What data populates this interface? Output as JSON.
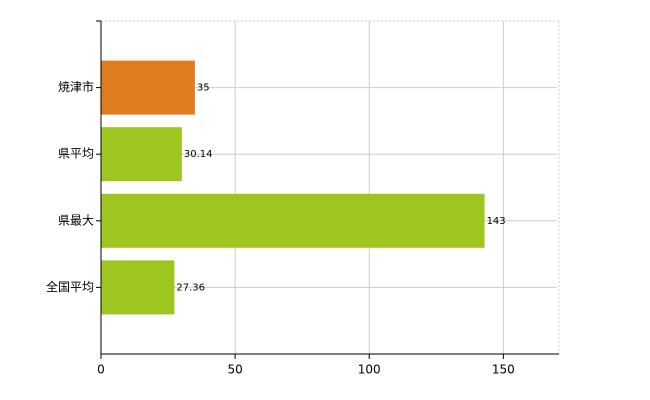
{
  "chart_data": {
    "type": "bar",
    "orientation": "horizontal",
    "categories": [
      "焼津市",
      "県平均",
      "県最大",
      "全国平均"
    ],
    "values": [
      35,
      30.14,
      143,
      27.36
    ],
    "colors": [
      "#e07b1f",
      "#9ec620",
      "#9ec620",
      "#9ec620"
    ],
    "xlim": [
      0,
      170
    ],
    "xticks": [
      0,
      50,
      100,
      150
    ],
    "grid": true
  }
}
